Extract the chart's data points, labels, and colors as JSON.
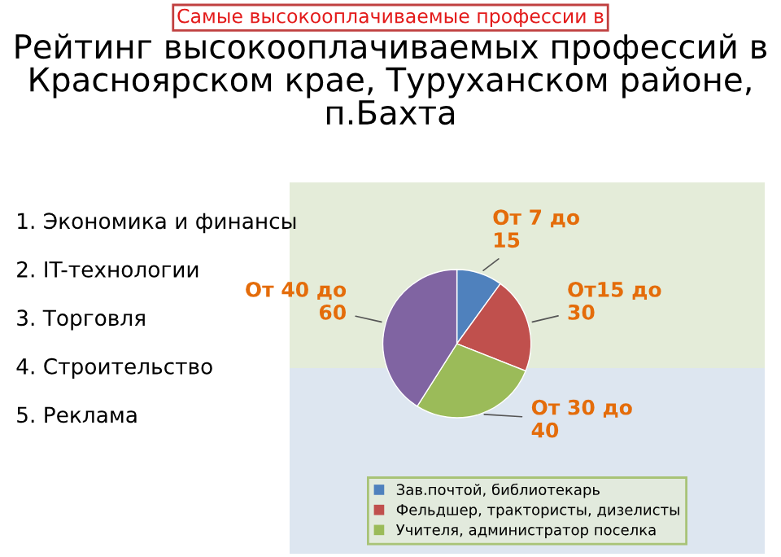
{
  "chart_data": {
    "type": "pie",
    "title": "Рейтинг высокооплачиваемых профессий в Красноярском крае, Туруханском районе, п.Бахта",
    "subtitle": "Самые высокооплачиваемые профессии в",
    "categories": [
      "Зав.почтой, библиотекарь",
      "Фельдшер, трактористы, дизелисты",
      "Учителя, администратор поселка",
      null
    ],
    "values": [
      10,
      21,
      28,
      41
    ],
    "colors": [
      "#4f81bd",
      "#c0504d",
      "#9bbb59",
      "#8064a2"
    ],
    "value_labels": [
      "От 7 до 15",
      "От15 до 30",
      "От 30 до 40",
      "От 40 до 60"
    ],
    "legend": "bottom",
    "annotations": [
      "1. Экономика и финансы",
      "2. IT-технологии",
      "3. Торговля",
      "4. Строительство",
      "5. Реклама"
    ]
  }
}
